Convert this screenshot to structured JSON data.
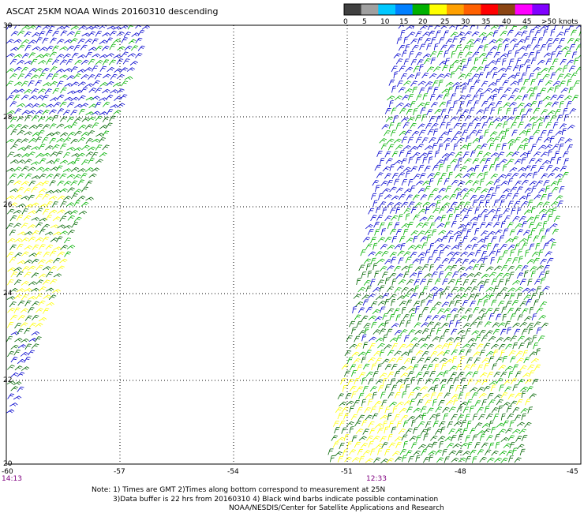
{
  "title": "ASCAT 25KM NOAA Winds 20160310 descending",
  "colorbar": {
    "labels": [
      "0",
      "5",
      "10",
      "15",
      "20",
      "25",
      "30",
      "35",
      "40",
      "45",
      ">50 knots"
    ],
    "colors": [
      "#404040",
      "#a0a0a0",
      "#00c8ff",
      "#0080ff",
      "#00b000",
      "#ffff00",
      "#ffa000",
      "#ff6000",
      "#ff0000",
      "#8b4513",
      "#ff00ff",
      "#8000ff"
    ]
  },
  "map": {
    "lat_labels": [
      "30",
      "28",
      "26",
      "24",
      "22",
      "20"
    ],
    "lon_labels": [
      "-60",
      "-57",
      "-54",
      "-51",
      "-48",
      "-45"
    ],
    "times": [
      "14:13",
      "12:33"
    ]
  },
  "notes": {
    "line1": "Note: 1) Times are GMT 2)Times along bottom correspond to measurement at 25N",
    "line2": "3)Data buffer is 22 hrs from 20160310 4) Black wind barbs indicate possible contamination",
    "line3": "NOAA/NESDIS/Center for Satellite Applications and Research"
  },
  "wind_colors": {
    "blue": "#0000cc",
    "green": "#00b000",
    "dark_green": "#006400",
    "yellow": "#ffff00"
  }
}
